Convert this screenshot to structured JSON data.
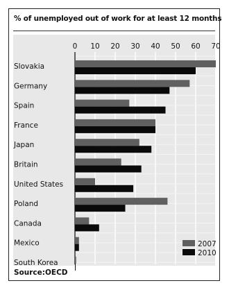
{
  "title": "% of unemployed out of work for at least 12 months",
  "source": "Source:OECD",
  "colors": {
    "s2007": "#606060",
    "s2010": "#0a0a0a",
    "grid": "#ffffff",
    "panel": "#e8e8e8"
  },
  "chart_data": {
    "type": "bar",
    "orientation": "horizontal",
    "title": "% of unemployed out of work for at least 12 months",
    "categories": [
      "Slovakia",
      "Germany",
      "Spain",
      "France",
      "Japan",
      "Britain",
      "United States",
      "Poland",
      "Canada",
      "Mexico",
      "South Korea"
    ],
    "series": [
      {
        "name": "2007",
        "values": [
          70,
          57,
          27,
          40,
          32,
          23,
          10,
          46,
          7,
          2,
          0.6
        ]
      },
      {
        "name": "2010",
        "values": [
          60,
          47,
          45,
          40,
          38,
          33,
          29,
          25,
          12,
          2,
          0.3
        ]
      }
    ],
    "xlim": [
      0,
      70
    ],
    "xticks": [
      0,
      10,
      20,
      30,
      40,
      50,
      60,
      70
    ],
    "xtick_position": "top",
    "legend_position": "bottom-right",
    "grid": true
  }
}
